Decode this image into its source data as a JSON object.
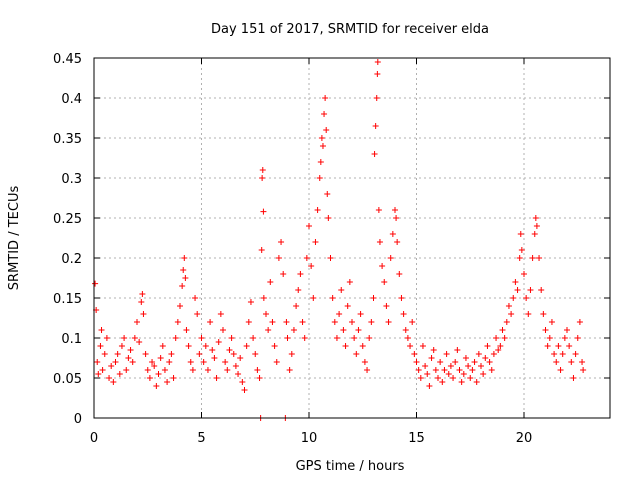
{
  "chart_data": {
    "type": "scatter",
    "title": "Day 151 of 2017, SRMTID for receiver elda",
    "xlabel": "GPS time / hours",
    "ylabel": "SRMTID / TECUs",
    "xlim": [
      0,
      24
    ],
    "ylim": [
      0,
      0.45
    ],
    "x_ticks": [
      0,
      5,
      10,
      15,
      20
    ],
    "x_tick_labels": [
      "0",
      "5",
      "10",
      "15",
      "20"
    ],
    "y_ticks": [
      0,
      0.05,
      0.1,
      0.15,
      0.2,
      0.25,
      0.3,
      0.35,
      0.4,
      0.45
    ],
    "y_tick_labels": [
      "0",
      "0.05",
      "0.1",
      "0.15",
      "0.2",
      "0.25",
      "0.3",
      "0.35",
      "0.4",
      "0.45"
    ],
    "grid": true,
    "marker": "+",
    "series": [
      {
        "name": "SRMTID",
        "color": "#ff0000",
        "points": [
          [
            0.05,
            0.168
          ],
          [
            0.1,
            0.135
          ],
          [
            0.15,
            0.07
          ],
          [
            0.2,
            0.055
          ],
          [
            0.3,
            0.09
          ],
          [
            0.35,
            0.11
          ],
          [
            0.4,
            0.06
          ],
          [
            0.5,
            0.08
          ],
          [
            0.6,
            0.1
          ],
          [
            0.7,
            0.05
          ],
          [
            0.8,
            0.065
          ],
          [
            0.9,
            0.045
          ],
          [
            1.0,
            0.07
          ],
          [
            1.1,
            0.08
          ],
          [
            1.2,
            0.055
          ],
          [
            1.3,
            0.09
          ],
          [
            1.4,
            0.1
          ],
          [
            1.5,
            0.06
          ],
          [
            1.6,
            0.075
          ],
          [
            1.7,
            0.085
          ],
          [
            1.8,
            0.07
          ],
          [
            1.9,
            0.1
          ],
          [
            2.0,
            0.12
          ],
          [
            2.1,
            0.095
          ],
          [
            2.2,
            0.145
          ],
          [
            2.25,
            0.155
          ],
          [
            2.3,
            0.13
          ],
          [
            2.4,
            0.08
          ],
          [
            2.5,
            0.06
          ],
          [
            2.6,
            0.05
          ],
          [
            2.7,
            0.07
          ],
          [
            2.8,
            0.065
          ],
          [
            2.9,
            0.04
          ],
          [
            3.0,
            0.055
          ],
          [
            3.1,
            0.075
          ],
          [
            3.2,
            0.09
          ],
          [
            3.3,
            0.06
          ],
          [
            3.4,
            0.045
          ],
          [
            3.5,
            0.07
          ],
          [
            3.6,
            0.08
          ],
          [
            3.7,
            0.05
          ],
          [
            3.8,
            0.1
          ],
          [
            3.9,
            0.12
          ],
          [
            4.0,
            0.14
          ],
          [
            4.1,
            0.165
          ],
          [
            4.15,
            0.185
          ],
          [
            4.2,
            0.2
          ],
          [
            4.25,
            0.175
          ],
          [
            4.3,
            0.11
          ],
          [
            4.4,
            0.09
          ],
          [
            4.5,
            0.07
          ],
          [
            4.6,
            0.06
          ],
          [
            4.7,
            0.15
          ],
          [
            4.8,
            0.13
          ],
          [
            4.9,
            0.08
          ],
          [
            5.0,
            0.1
          ],
          [
            5.1,
            0.07
          ],
          [
            5.2,
            0.09
          ],
          [
            5.3,
            0.06
          ],
          [
            5.4,
            0.12
          ],
          [
            5.5,
            0.085
          ],
          [
            5.6,
            0.075
          ],
          [
            5.7,
            0.05
          ],
          [
            5.8,
            0.095
          ],
          [
            5.9,
            0.13
          ],
          [
            6.0,
            0.11
          ],
          [
            6.1,
            0.07
          ],
          [
            6.2,
            0.06
          ],
          [
            6.3,
            0.085
          ],
          [
            6.4,
            0.1
          ],
          [
            6.5,
            0.08
          ],
          [
            6.6,
            0.065
          ],
          [
            6.7,
            0.055
          ],
          [
            6.8,
            0.075
          ],
          [
            6.9,
            0.045
          ],
          [
            7.0,
            0.035
          ],
          [
            7.1,
            0.09
          ],
          [
            7.2,
            0.12
          ],
          [
            7.3,
            0.145
          ],
          [
            7.4,
            0.1
          ],
          [
            7.5,
            0.08
          ],
          [
            7.6,
            0.06
          ],
          [
            7.7,
            0.05
          ],
          [
            7.75,
            0.0
          ],
          [
            7.8,
            0.21
          ],
          [
            7.82,
            0.3
          ],
          [
            7.85,
            0.31
          ],
          [
            7.88,
            0.258
          ],
          [
            7.9,
            0.15
          ],
          [
            8.0,
            0.13
          ],
          [
            8.1,
            0.11
          ],
          [
            8.2,
            0.17
          ],
          [
            8.3,
            0.12
          ],
          [
            8.4,
            0.09
          ],
          [
            8.5,
            0.07
          ],
          [
            8.6,
            0.2
          ],
          [
            8.7,
            0.22
          ],
          [
            8.8,
            0.18
          ],
          [
            8.9,
            0.0
          ],
          [
            8.95,
            0.12
          ],
          [
            9.0,
            0.1
          ],
          [
            9.1,
            0.06
          ],
          [
            9.2,
            0.08
          ],
          [
            9.3,
            0.11
          ],
          [
            9.4,
            0.14
          ],
          [
            9.5,
            0.16
          ],
          [
            9.6,
            0.18
          ],
          [
            9.7,
            0.12
          ],
          [
            9.8,
            0.1
          ],
          [
            9.9,
            0.2
          ],
          [
            10.0,
            0.24
          ],
          [
            10.1,
            0.19
          ],
          [
            10.2,
            0.15
          ],
          [
            10.3,
            0.22
          ],
          [
            10.4,
            0.26
          ],
          [
            10.5,
            0.3
          ],
          [
            10.55,
            0.32
          ],
          [
            10.6,
            0.35
          ],
          [
            10.65,
            0.34
          ],
          [
            10.7,
            0.38
          ],
          [
            10.75,
            0.4
          ],
          [
            10.8,
            0.36
          ],
          [
            10.85,
            0.28
          ],
          [
            10.9,
            0.25
          ],
          [
            11.0,
            0.2
          ],
          [
            11.1,
            0.15
          ],
          [
            11.2,
            0.12
          ],
          [
            11.3,
            0.1
          ],
          [
            11.4,
            0.13
          ],
          [
            11.5,
            0.16
          ],
          [
            11.6,
            0.11
          ],
          [
            11.7,
            0.09
          ],
          [
            11.8,
            0.14
          ],
          [
            11.9,
            0.17
          ],
          [
            12.0,
            0.12
          ],
          [
            12.1,
            0.1
          ],
          [
            12.2,
            0.08
          ],
          [
            12.3,
            0.11
          ],
          [
            12.4,
            0.13
          ],
          [
            12.5,
            0.09
          ],
          [
            12.6,
            0.07
          ],
          [
            12.7,
            0.06
          ],
          [
            12.8,
            0.1
          ],
          [
            12.9,
            0.12
          ],
          [
            13.0,
            0.15
          ],
          [
            13.05,
            0.33
          ],
          [
            13.1,
            0.365
          ],
          [
            13.15,
            0.4
          ],
          [
            13.18,
            0.43
          ],
          [
            13.2,
            0.445
          ],
          [
            13.25,
            0.26
          ],
          [
            13.3,
            0.22
          ],
          [
            13.4,
            0.19
          ],
          [
            13.5,
            0.17
          ],
          [
            13.6,
            0.14
          ],
          [
            13.7,
            0.12
          ],
          [
            13.8,
            0.2
          ],
          [
            13.9,
            0.23
          ],
          [
            14.0,
            0.26
          ],
          [
            14.05,
            0.25
          ],
          [
            14.1,
            0.22
          ],
          [
            14.2,
            0.18
          ],
          [
            14.3,
            0.15
          ],
          [
            14.4,
            0.13
          ],
          [
            14.5,
            0.11
          ],
          [
            14.6,
            0.1
          ],
          [
            14.7,
            0.09
          ],
          [
            14.8,
            0.12
          ],
          [
            14.9,
            0.08
          ],
          [
            15.0,
            0.07
          ],
          [
            15.1,
            0.06
          ],
          [
            15.2,
            0.05
          ],
          [
            15.3,
            0.09
          ],
          [
            15.4,
            0.065
          ],
          [
            15.5,
            0.055
          ],
          [
            15.6,
            0.04
          ],
          [
            15.7,
            0.075
          ],
          [
            15.8,
            0.085
          ],
          [
            15.9,
            0.06
          ],
          [
            16.0,
            0.05
          ],
          [
            16.1,
            0.07
          ],
          [
            16.2,
            0.045
          ],
          [
            16.3,
            0.06
          ],
          [
            16.4,
            0.08
          ],
          [
            16.5,
            0.055
          ],
          [
            16.6,
            0.065
          ],
          [
            16.7,
            0.05
          ],
          [
            16.8,
            0.07
          ],
          [
            16.9,
            0.085
          ],
          [
            17.0,
            0.06
          ],
          [
            17.1,
            0.045
          ],
          [
            17.2,
            0.055
          ],
          [
            17.3,
            0.075
          ],
          [
            17.4,
            0.065
          ],
          [
            17.5,
            0.05
          ],
          [
            17.6,
            0.06
          ],
          [
            17.7,
            0.07
          ],
          [
            17.8,
            0.045
          ],
          [
            17.9,
            0.08
          ],
          [
            18.0,
            0.065
          ],
          [
            18.1,
            0.055
          ],
          [
            18.2,
            0.075
          ],
          [
            18.3,
            0.09
          ],
          [
            18.4,
            0.07
          ],
          [
            18.5,
            0.06
          ],
          [
            18.6,
            0.08
          ],
          [
            18.7,
            0.1
          ],
          [
            18.8,
            0.085
          ],
          [
            18.9,
            0.09
          ],
          [
            19.0,
            0.11
          ],
          [
            19.1,
            0.1
          ],
          [
            19.2,
            0.12
          ],
          [
            19.3,
            0.14
          ],
          [
            19.4,
            0.13
          ],
          [
            19.5,
            0.15
          ],
          [
            19.6,
            0.17
          ],
          [
            19.7,
            0.16
          ],
          [
            19.8,
            0.2
          ],
          [
            19.85,
            0.23
          ],
          [
            19.9,
            0.21
          ],
          [
            20.0,
            0.18
          ],
          [
            20.1,
            0.15
          ],
          [
            20.2,
            0.13
          ],
          [
            20.3,
            0.16
          ],
          [
            20.4,
            0.2
          ],
          [
            20.5,
            0.23
          ],
          [
            20.55,
            0.25
          ],
          [
            20.6,
            0.24
          ],
          [
            20.7,
            0.2
          ],
          [
            20.8,
            0.16
          ],
          [
            20.9,
            0.13
          ],
          [
            21.0,
            0.11
          ],
          [
            21.1,
            0.09
          ],
          [
            21.2,
            0.1
          ],
          [
            21.3,
            0.12
          ],
          [
            21.4,
            0.08
          ],
          [
            21.5,
            0.07
          ],
          [
            21.6,
            0.09
          ],
          [
            21.7,
            0.06
          ],
          [
            21.8,
            0.08
          ],
          [
            21.9,
            0.1
          ],
          [
            22.0,
            0.11
          ],
          [
            22.1,
            0.09
          ],
          [
            22.2,
            0.07
          ],
          [
            22.3,
            0.05
          ],
          [
            22.4,
            0.08
          ],
          [
            22.5,
            0.1
          ],
          [
            22.6,
            0.12
          ],
          [
            22.7,
            0.07
          ],
          [
            22.75,
            0.06
          ]
        ]
      }
    ]
  }
}
